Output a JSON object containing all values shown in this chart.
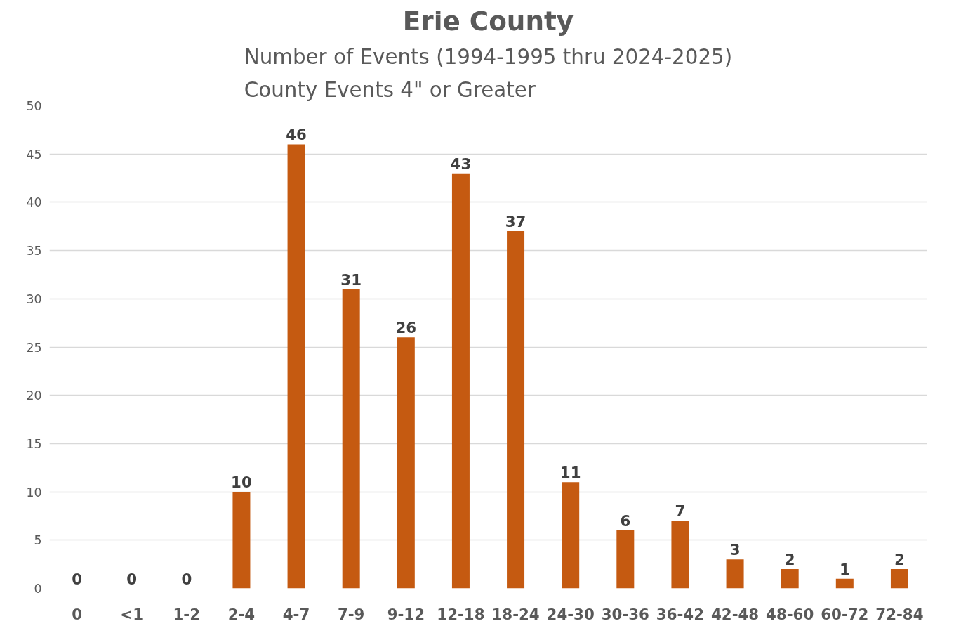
{
  "chart_data": {
    "type": "bar",
    "title": "Erie County",
    "subtitle": "Number of Events (1994-1995 thru 2024-2025)\nCounty Events 4\" or Greater",
    "categories": [
      "0",
      "<1",
      "1-2",
      "2-4",
      "4-7",
      "7-9",
      "9-12",
      "12-18",
      "18-24",
      "24-30",
      "30-36",
      "36-42",
      "42-48",
      "48-60",
      "60-72",
      "72-84"
    ],
    "values": [
      0,
      0,
      0,
      10,
      46,
      31,
      26,
      43,
      37,
      11,
      6,
      7,
      3,
      2,
      1,
      2
    ],
    "color": "#c55a11",
    "ylim": [
      0,
      50
    ],
    "yticks": [
      0,
      5,
      10,
      15,
      20,
      25,
      30,
      35,
      40,
      45,
      50
    ],
    "grid": "y",
    "data_labels": true
  }
}
